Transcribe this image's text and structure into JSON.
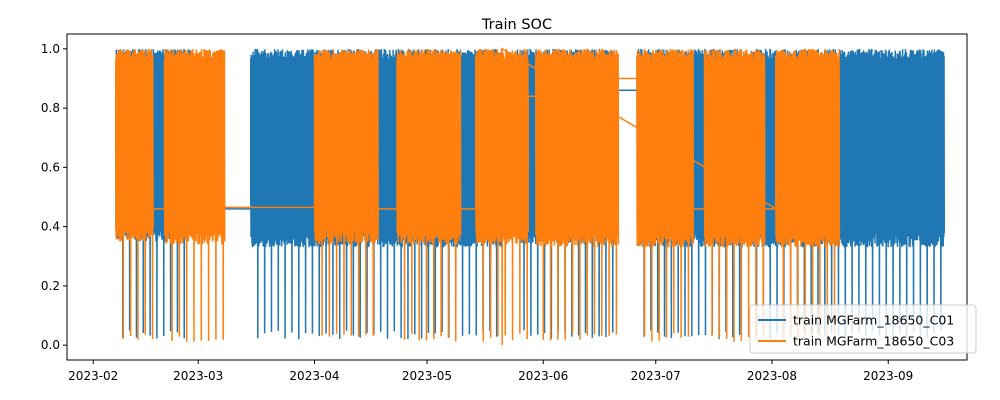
{
  "chart_data": {
    "type": "line",
    "title": "Train SOC",
    "xlabel": "",
    "ylabel": "",
    "x_axis": {
      "type": "date",
      "range": [
        "2023-01-25",
        "2023-09-22"
      ]
    },
    "ylim": [
      -0.05,
      1.05
    ],
    "x_ticks": [
      {
        "date": "2023-02-01",
        "label": "2023-02"
      },
      {
        "date": "2023-03-01",
        "label": "2023-03"
      },
      {
        "date": "2023-04-01",
        "label": "2023-04"
      },
      {
        "date": "2023-05-01",
        "label": "2023-05"
      },
      {
        "date": "2023-06-01",
        "label": "2023-06"
      },
      {
        "date": "2023-07-01",
        "label": "2023-07"
      },
      {
        "date": "2023-08-01",
        "label": "2023-08"
      },
      {
        "date": "2023-09-01",
        "label": "2023-09"
      }
    ],
    "y_ticks": [
      {
        "value": 0.0,
        "label": "0.0"
      },
      {
        "value": 0.2,
        "label": "0.2"
      },
      {
        "value": 0.4,
        "label": "0.4"
      },
      {
        "value": 0.6,
        "label": "0.6"
      },
      {
        "value": 0.8,
        "label": "0.8"
      },
      {
        "value": 1.0,
        "label": "1.0"
      }
    ],
    "grid": false,
    "legend": {
      "position": "lower-right"
    },
    "series": [
      {
        "name": "train MGFarm_18650_C01",
        "color": "#1f77b4",
        "cycling_periods": [
          {
            "start": "2023-02-07",
            "end": "2023-02-27",
            "min": 0.35,
            "max": 1.0
          },
          {
            "start": "2023-03-15",
            "end": "2023-05-21",
            "min": 0.33,
            "max": 1.0
          },
          {
            "start": "2023-05-25",
            "end": "2023-06-20",
            "min": 0.34,
            "max": 1.0
          },
          {
            "start": "2023-06-26",
            "end": "2023-07-24",
            "min": 0.33,
            "max": 1.0
          },
          {
            "start": "2023-07-26",
            "end": "2023-09-16",
            "min": 0.33,
            "max": 1.0
          }
        ],
        "rest_levels": [
          {
            "start": "2023-02-27",
            "end": "2023-03-15",
            "value": 0.46
          },
          {
            "start": "2023-05-21",
            "end": "2023-05-25",
            "value": 0.96
          },
          {
            "start": "2023-06-20",
            "end": "2023-06-26",
            "value": 0.86
          },
          {
            "start": "2023-07-24",
            "end": "2023-07-26",
            "value": 0.55
          }
        ],
        "deep_discharge_interval_days": 1.8,
        "deep_discharge_min": 0.02
      },
      {
        "name": "train MGFarm_18650_C03",
        "color": "#ff7f0e",
        "cycling_periods": [
          {
            "start": "2023-02-07",
            "end": "2023-02-17",
            "min": 0.35,
            "max": 1.0
          },
          {
            "start": "2023-02-20",
            "end": "2023-03-08",
            "min": 0.34,
            "max": 1.0
          },
          {
            "start": "2023-04-01",
            "end": "2023-04-18",
            "min": 0.34,
            "max": 1.0
          },
          {
            "start": "2023-04-23",
            "end": "2023-05-10",
            "min": 0.34,
            "max": 1.0
          },
          {
            "start": "2023-05-14",
            "end": "2023-05-28",
            "min": 0.34,
            "max": 1.0
          },
          {
            "start": "2023-05-30",
            "end": "2023-06-21",
            "min": 0.33,
            "max": 1.0
          },
          {
            "start": "2023-06-26",
            "end": "2023-07-11",
            "min": 0.33,
            "max": 1.0
          },
          {
            "start": "2023-07-14",
            "end": "2023-07-30",
            "min": 0.33,
            "max": 1.0
          },
          {
            "start": "2023-08-02",
            "end": "2023-08-19",
            "min": 0.33,
            "max": 1.0
          }
        ],
        "rest_levels": [
          {
            "start": "2023-02-17",
            "end": "2023-02-20",
            "value": 0.46
          },
          {
            "start": "2023-03-08",
            "end": "2023-04-01",
            "value": 0.465
          },
          {
            "start": "2023-04-18",
            "end": "2023-04-23",
            "value": 0.46
          },
          {
            "start": "2023-05-10",
            "end": "2023-05-14",
            "value": 0.46
          },
          {
            "start": "2023-05-28",
            "end": "2023-05-30",
            "value": 0.84
          },
          {
            "start": "2023-06-21",
            "end": "2023-06-26",
            "value": 0.9
          },
          {
            "start": "2023-07-11",
            "end": "2023-07-14",
            "value": 0.46
          },
          {
            "start": "2023-07-30",
            "end": "2023-08-02",
            "value": 0.46
          }
        ],
        "deep_discharge_interval_days": 1.9,
        "deep_discharge_min": 0.01,
        "min_point": {
          "date": "2023-05-21",
          "value": 0.0
        }
      }
    ]
  }
}
